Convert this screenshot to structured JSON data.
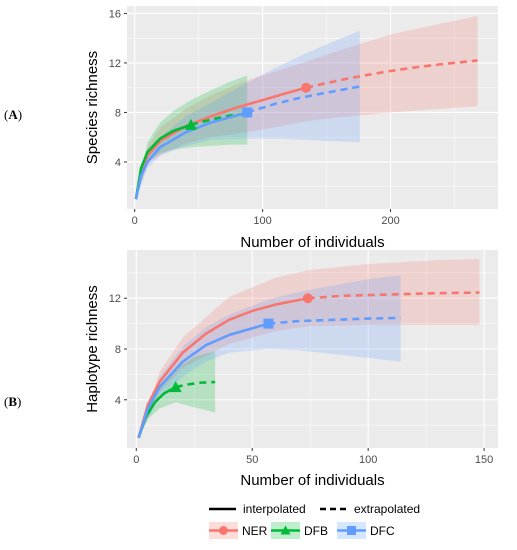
{
  "panels": [
    {
      "label_prefix": "(",
      "label_letter": "A",
      "label_suffix": ")"
    },
    {
      "label_prefix": "(",
      "label_letter": "B",
      "label_suffix": ")"
    }
  ],
  "legend": {
    "linetypes": [
      "interpolated",
      "extrapolated"
    ],
    "groups": [
      "NER",
      "DFB",
      "DFC"
    ]
  },
  "colors": {
    "NER": "#f8766d",
    "DFB": "#00ba38",
    "DFC": "#619cff",
    "panel_bg": "#ebebeb",
    "grid": "#ffffff"
  },
  "chart_data": [
    {
      "type": "line",
      "title": "",
      "xlabel": "Number of individuals",
      "ylabel": "Species richness",
      "xlim": [
        -6,
        284
      ],
      "ylim": [
        0.2,
        16.6
      ],
      "xticks": [
        0,
        100,
        200
      ],
      "yticks": [
        4,
        8,
        12,
        16
      ],
      "grid": true,
      "series": [
        {
          "name": "NER",
          "marker": "circle",
          "observed": {
            "x": 134,
            "y": 10
          },
          "interpolated": {
            "x": [
              1,
              5,
              10,
              20,
              40,
              60,
              80,
              100,
              120,
              134
            ],
            "y": [
              1,
              3.3,
              4.5,
              5.7,
              6.9,
              7.7,
              8.4,
              9.0,
              9.6,
              10.0
            ]
          },
          "extrapolated": {
            "x": [
              134,
              160,
              180,
              200,
              220,
              240,
              268
            ],
            "y": [
              10.0,
              10.6,
              11.0,
              11.35,
              11.65,
              11.9,
              12.2
            ]
          },
          "ci": {
            "x": [
              1,
              10,
              20,
              40,
              60,
              80,
              100,
              134,
              160,
              200,
              240,
              268
            ],
            "lower": [
              1,
              3.8,
              4.6,
              5.5,
              6.0,
              6.3,
              6.6,
              7.3,
              7.6,
              8.0,
              8.3,
              8.5
            ],
            "upper": [
              1,
              5.2,
              6.8,
              8.3,
              9.4,
              10.3,
              11.0,
              12.1,
              13.0,
              14.3,
              15.2,
              15.8
            ]
          }
        },
        {
          "name": "DFB",
          "marker": "triangle",
          "observed": {
            "x": 44,
            "y": 7
          },
          "interpolated": {
            "x": [
              1,
              5,
              10,
              20,
              30,
              44
            ],
            "y": [
              1,
              3.5,
              4.8,
              5.9,
              6.5,
              7.0
            ]
          },
          "extrapolated": {
            "x": [
              44,
              55,
              65,
              75,
              88
            ],
            "y": [
              7.0,
              7.3,
              7.55,
              7.75,
              7.9
            ]
          },
          "ci": {
            "x": [
              1,
              10,
              20,
              30,
              44,
              60,
              75,
              88
            ],
            "lower": [
              1,
              4.0,
              4.7,
              5.0,
              5.2,
              5.3,
              5.4,
              5.4
            ],
            "upper": [
              1,
              5.6,
              7.2,
              8.1,
              9.0,
              9.8,
              10.5,
              11.0
            ]
          }
        },
        {
          "name": "DFC",
          "marker": "square",
          "observed": {
            "x": 88,
            "y": 8
          },
          "interpolated": {
            "x": [
              1,
              5,
              10,
              20,
              40,
              60,
              88
            ],
            "y": [
              1,
              2.9,
              4.0,
              5.2,
              6.4,
              7.2,
              8.0
            ]
          },
          "extrapolated": {
            "x": [
              88,
              110,
              130,
              150,
              176
            ],
            "y": [
              8.0,
              8.7,
              9.2,
              9.6,
              10.1
            ]
          },
          "ci": {
            "x": [
              1,
              10,
              20,
              40,
              60,
              88,
              110,
              130,
              150,
              176
            ],
            "lower": [
              1,
              3.5,
              4.5,
              5.3,
              5.8,
              5.9,
              5.9,
              5.8,
              5.7,
              5.6
            ],
            "upper": [
              1,
              4.6,
              6.0,
              7.7,
              8.8,
              10.4,
              11.6,
              12.6,
              13.5,
              14.6
            ]
          }
        }
      ]
    },
    {
      "type": "line",
      "title": "",
      "xlabel": "Number of individuals",
      "ylabel": "Haplotype richness",
      "xlim": [
        -4,
        156
      ],
      "ylim": [
        0.2,
        15.8
      ],
      "xticks": [
        0,
        50,
        100,
        150
      ],
      "yticks": [
        4,
        8,
        12
      ],
      "grid": true,
      "series": [
        {
          "name": "NER",
          "marker": "circle",
          "observed": {
            "x": 74,
            "y": 12
          },
          "interpolated": {
            "x": [
              1,
              5,
              10,
              20,
              30,
              40,
              50,
              60,
              74
            ],
            "y": [
              1,
              3.6,
              5.4,
              7.7,
              9.2,
              10.3,
              11.0,
              11.5,
              12.0
            ]
          },
          "extrapolated": {
            "x": [
              74,
              90,
              110,
              130,
              148
            ],
            "y": [
              12.0,
              12.2,
              12.3,
              12.4,
              12.45
            ]
          },
          "ci": {
            "x": [
              1,
              10,
              20,
              40,
              60,
              74,
              100,
              130,
              148
            ],
            "lower": [
              1,
              4.6,
              6.5,
              8.4,
              9.4,
              9.8,
              9.9,
              9.9,
              9.9
            ],
            "upper": [
              1,
              6.2,
              8.9,
              12.1,
              13.6,
              14.2,
              14.7,
              15.0,
              15.1
            ]
          }
        },
        {
          "name": "DFB",
          "marker": "triangle",
          "observed": {
            "x": 17,
            "y": 5
          },
          "interpolated": {
            "x": [
              1,
              4,
              8,
              12,
              17
            ],
            "y": [
              1,
              2.6,
              3.8,
              4.5,
              5.0
            ]
          },
          "extrapolated": {
            "x": [
              17,
              22,
              28,
              34
            ],
            "y": [
              5.0,
              5.2,
              5.35,
              5.4
            ]
          },
          "ci": {
            "x": [
              1,
              5,
              10,
              17,
              25,
              34
            ],
            "lower": [
              1,
              2.5,
              3.3,
              3.8,
              3.4,
              3.0
            ],
            "upper": [
              1,
              3.6,
              5.2,
              6.4,
              7.4,
              7.8
            ]
          }
        },
        {
          "name": "DFC",
          "marker": "square",
          "observed": {
            "x": 57,
            "y": 10
          },
          "interpolated": {
            "x": [
              1,
              5,
              10,
              20,
              30,
              40,
              57
            ],
            "y": [
              1,
              3.3,
              5.0,
              7.0,
              8.3,
              9.1,
              10.0
            ]
          },
          "extrapolated": {
            "x": [
              57,
              70,
              85,
              100,
              114
            ],
            "y": [
              10.0,
              10.2,
              10.3,
              10.4,
              10.45
            ]
          },
          "ci": {
            "x": [
              1,
              10,
              20,
              30,
              40,
              57,
              70,
              85,
              100,
              114
            ],
            "lower": [
              1,
              4.2,
              5.8,
              7.0,
              7.7,
              8.0,
              7.9,
              7.6,
              7.3,
              7.0
            ],
            "upper": [
              1,
              5.8,
              8.2,
              9.7,
              10.7,
              11.9,
              12.5,
              13.0,
              13.5,
              13.8
            ]
          }
        }
      ]
    }
  ]
}
